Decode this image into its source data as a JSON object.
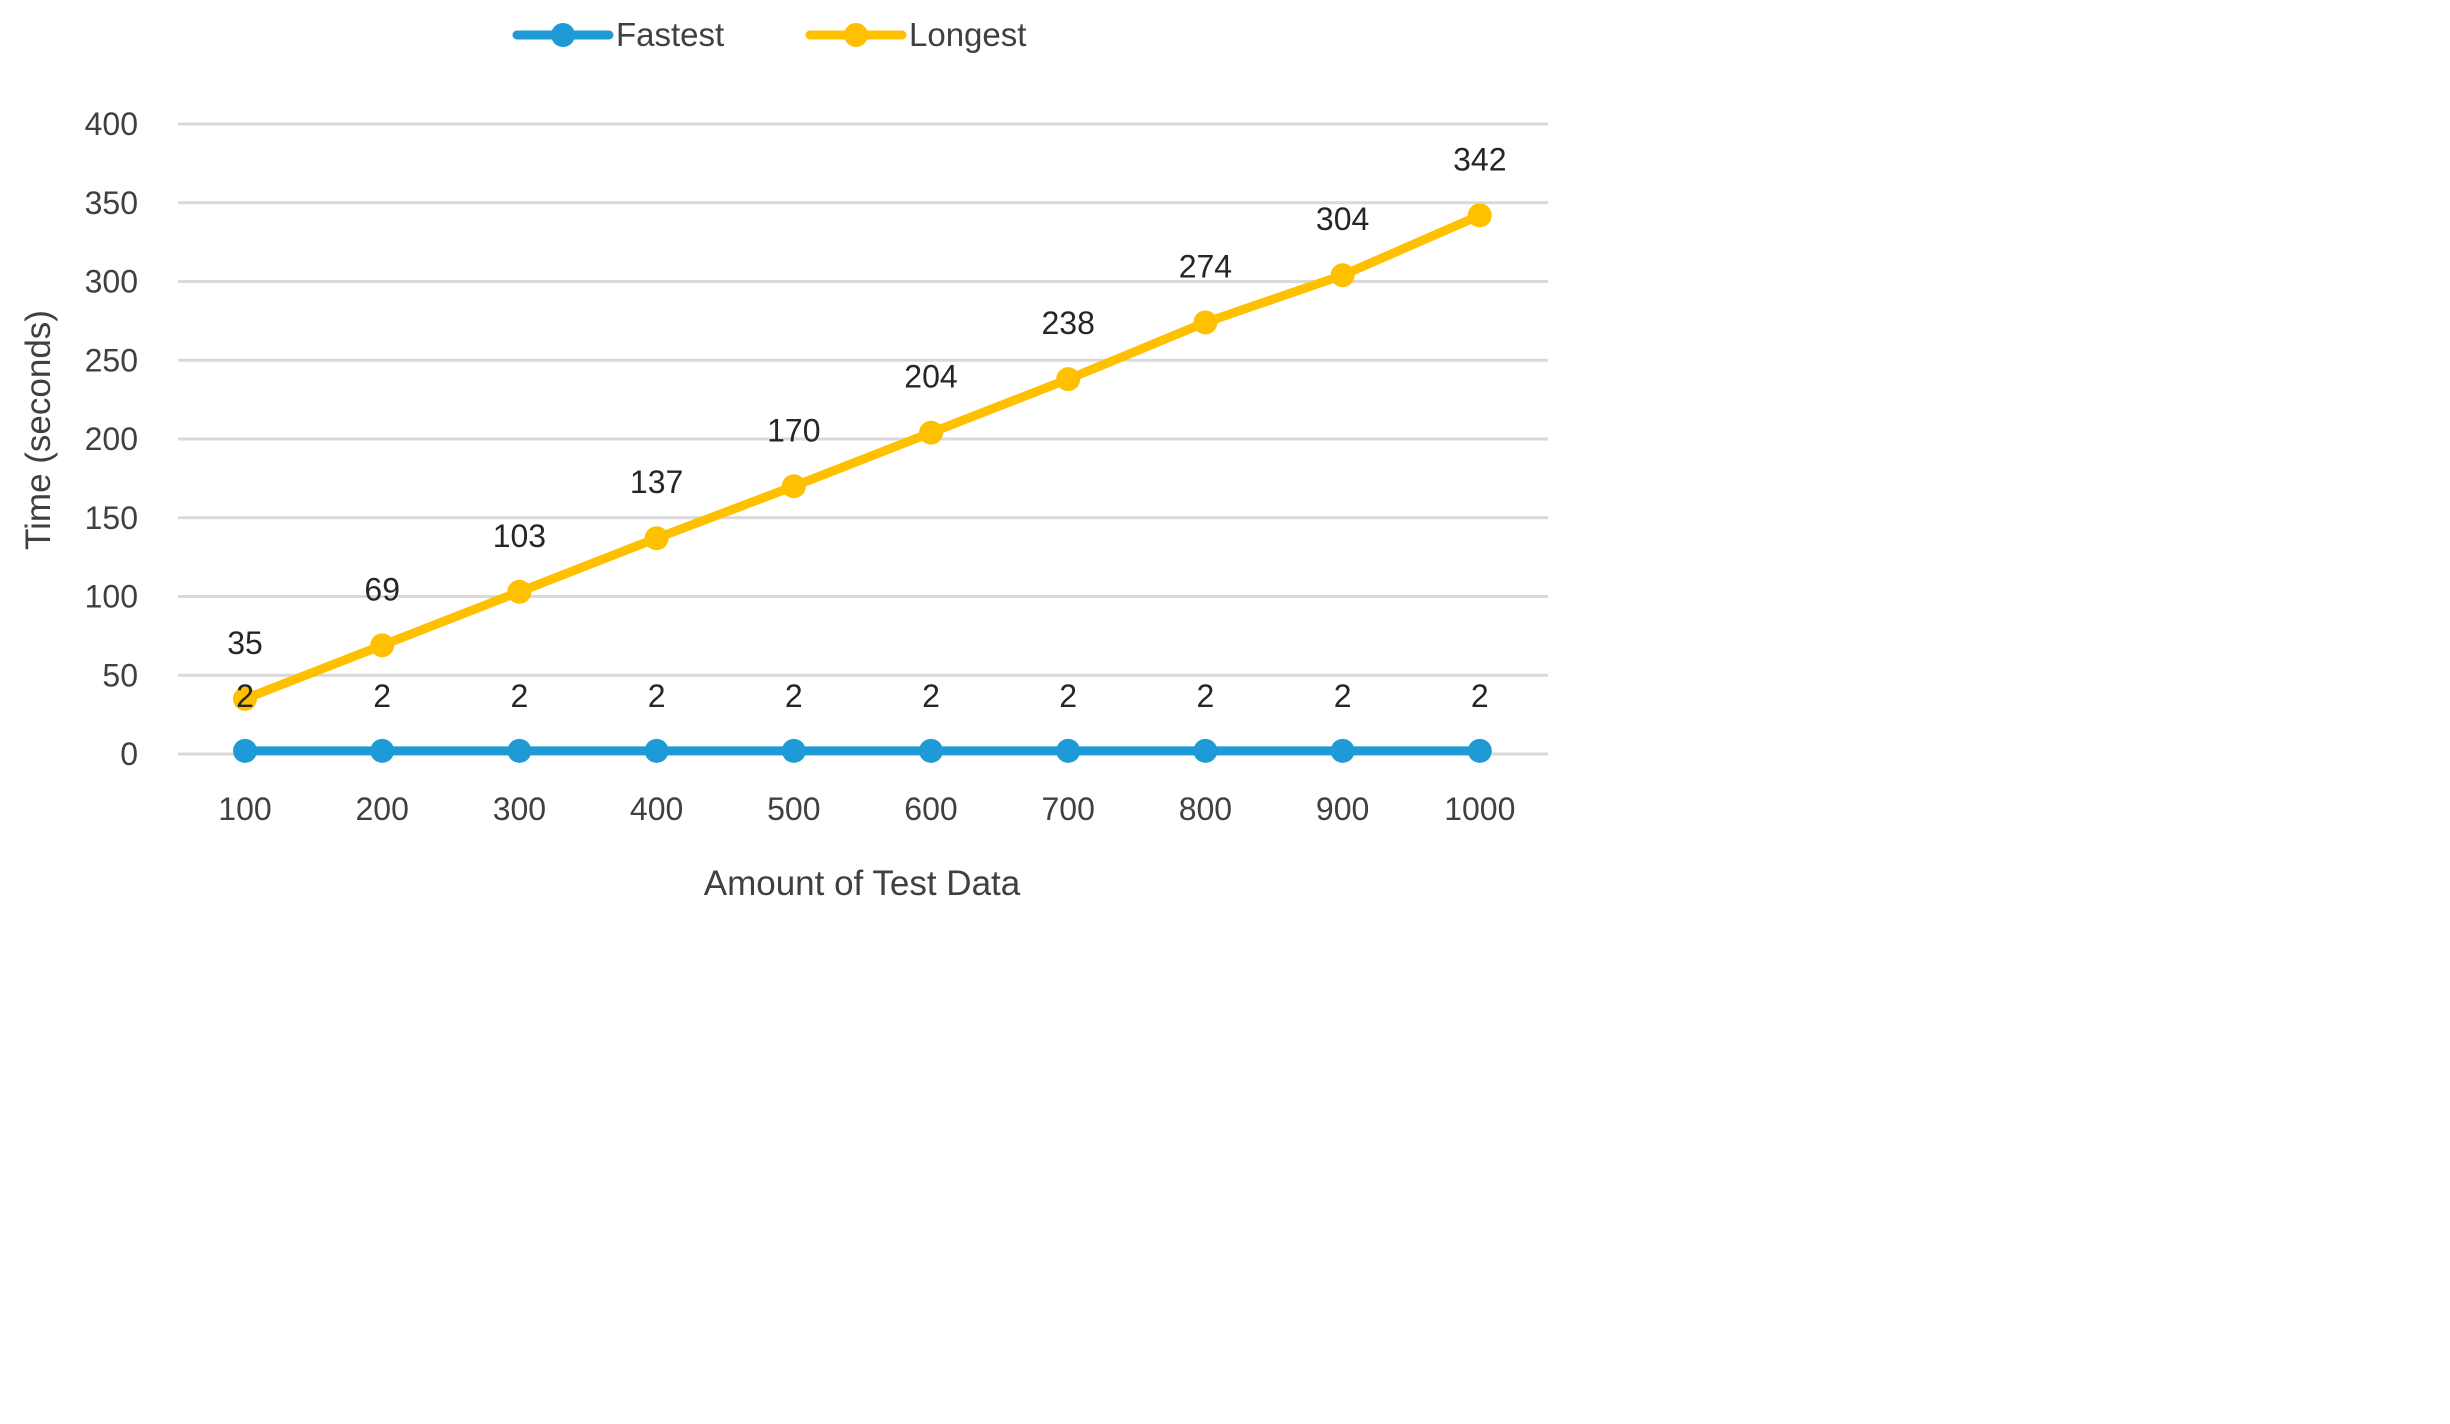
{
  "chart_data": {
    "type": "line",
    "title": "",
    "xlabel": "Amount of Test Data",
    "ylabel": "Time (seconds)",
    "categories": [
      "100",
      "200",
      "300",
      "400",
      "500",
      "600",
      "700",
      "800",
      "900",
      "1000"
    ],
    "ylim": [
      0,
      400
    ],
    "yticks": [
      "0",
      "50",
      "100",
      "150",
      "200",
      "250",
      "300",
      "350",
      "400"
    ],
    "grid": true,
    "legend_position": "top-center",
    "series": [
      {
        "name": "Fastest",
        "values": [
          2,
          2,
          2,
          2,
          2,
          2,
          2,
          2,
          2,
          2
        ],
        "color": "#1E9BD7"
      },
      {
        "name": "Longest",
        "values": [
          35,
          69,
          103,
          137,
          170,
          204,
          238,
          274,
          304,
          342
        ],
        "color": "#FFC000"
      }
    ]
  }
}
